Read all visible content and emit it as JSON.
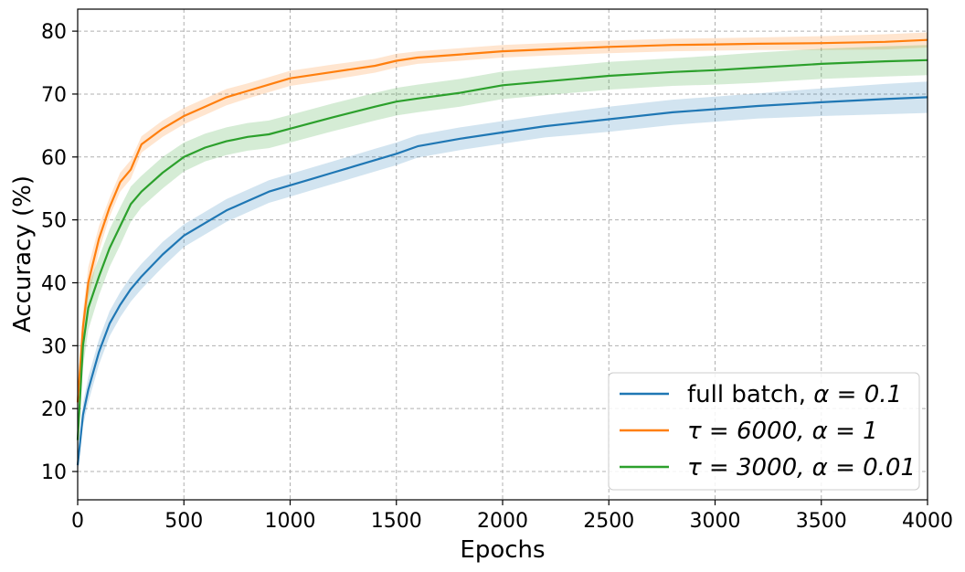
{
  "chart_data": {
    "type": "line",
    "title": "",
    "xlabel": "Epochs",
    "ylabel": "Accuracy (%)",
    "xlim": [
      0,
      4000
    ],
    "ylim": [
      5.5,
      83.5
    ],
    "xticks": [
      0,
      500,
      1000,
      1500,
      2000,
      2500,
      3000,
      3500,
      4000
    ],
    "yticks": [
      10,
      20,
      30,
      40,
      50,
      60,
      70,
      80
    ],
    "grid": true,
    "legend_position": "bottom-right",
    "series": [
      {
        "name": "full batch, α = 0.1",
        "legend_parts": {
          "text": "full batch, ",
          "math": "α = 0.1"
        },
        "color": "#1f77b4",
        "band_color": "#1f77b4",
        "x": [
          0,
          25,
          50,
          100,
          150,
          200,
          250,
          300,
          400,
          500,
          600,
          700,
          800,
          900,
          1000,
          1100,
          1200,
          1300,
          1400,
          1500,
          1600,
          1800,
          2000,
          2200,
          2500,
          2800,
          3000,
          3200,
          3500,
          3800,
          4000
        ],
        "y": [
          11,
          19,
          23,
          29,
          33.5,
          36.5,
          39,
          41,
          44.5,
          47.5,
          49.5,
          51.5,
          53,
          54.5,
          55.5,
          56.5,
          57.5,
          58.5,
          59.5,
          60.5,
          61.7,
          62.9,
          63.9,
          64.9,
          66.0,
          67.1,
          67.6,
          68.1,
          68.7,
          69.2,
          69.5
        ],
        "band": [
          1.2,
          1.8,
          2.0,
          2.0,
          2.0,
          2.0,
          2.0,
          2.0,
          2.0,
          1.8,
          1.8,
          1.8,
          1.8,
          1.8,
          1.8,
          1.8,
          1.8,
          1.8,
          1.8,
          1.8,
          1.8,
          1.8,
          1.8,
          1.8,
          2.0,
          2.0,
          2.0,
          2.0,
          2.2,
          2.4,
          2.5
        ]
      },
      {
        "name": "τ = 6000, α = 1",
        "legend_parts": {
          "text": "",
          "math": "τ = 6000, α = 1"
        },
        "color": "#ff7f0e",
        "band_color": "#ff7f0e",
        "x": [
          0,
          25,
          50,
          100,
          150,
          200,
          250,
          300,
          400,
          500,
          600,
          700,
          800,
          900,
          1000,
          1200,
          1400,
          1500,
          1600,
          1800,
          2000,
          2200,
          2500,
          2800,
          3000,
          3200,
          3500,
          3800,
          4000
        ],
        "y": [
          21,
          33,
          40,
          47,
          52,
          56,
          58,
          62,
          64.5,
          66.5,
          68,
          69.5,
          70.5,
          71.5,
          72.5,
          73.5,
          74.5,
          75.3,
          75.8,
          76.3,
          76.8,
          77.1,
          77.5,
          77.8,
          77.9,
          78.0,
          78.1,
          78.3,
          78.6
        ],
        "band": [
          2.0,
          2.5,
          2.5,
          2.0,
          1.5,
          1.5,
          1.5,
          1.3,
          1.3,
          1.3,
          1.3,
          1.3,
          1.2,
          1.2,
          1.2,
          1.2,
          1.1,
          1.1,
          1.0,
          1.0,
          1.0,
          1.0,
          1.0,
          1.0,
          1.0,
          1.0,
          1.1,
          1.2,
          1.2
        ]
      },
      {
        "name": "τ = 3000, α = 0.01",
        "legend_parts": {
          "text": "",
          "math": "τ = 3000, α = 0.01"
        },
        "color": "#2ca02c",
        "band_color": "#2ca02c",
        "x": [
          0,
          25,
          50,
          100,
          150,
          200,
          250,
          300,
          400,
          500,
          600,
          700,
          800,
          900,
          1000,
          1200,
          1400,
          1500,
          1600,
          1800,
          2000,
          2200,
          2500,
          2800,
          3000,
          3200,
          3500,
          3800,
          4000
        ],
        "y": [
          15,
          30,
          36,
          41,
          45.5,
          49,
          52.5,
          54.5,
          57.5,
          60,
          61.5,
          62.5,
          63.2,
          63.6,
          64.5,
          66.3,
          68,
          68.8,
          69.3,
          70.2,
          71.4,
          72.0,
          72.9,
          73.5,
          73.8,
          74.2,
          74.8,
          75.2,
          75.4
        ],
        "band": [
          2.5,
          3.5,
          3.5,
          3.0,
          3.0,
          3.0,
          2.8,
          2.5,
          2.5,
          2.3,
          2.2,
          2.2,
          2.2,
          2.2,
          2.2,
          2.2,
          2.2,
          2.2,
          2.2,
          2.2,
          2.2,
          2.2,
          2.2,
          2.2,
          2.3,
          2.4,
          2.4,
          2.4,
          2.4
        ]
      }
    ]
  }
}
